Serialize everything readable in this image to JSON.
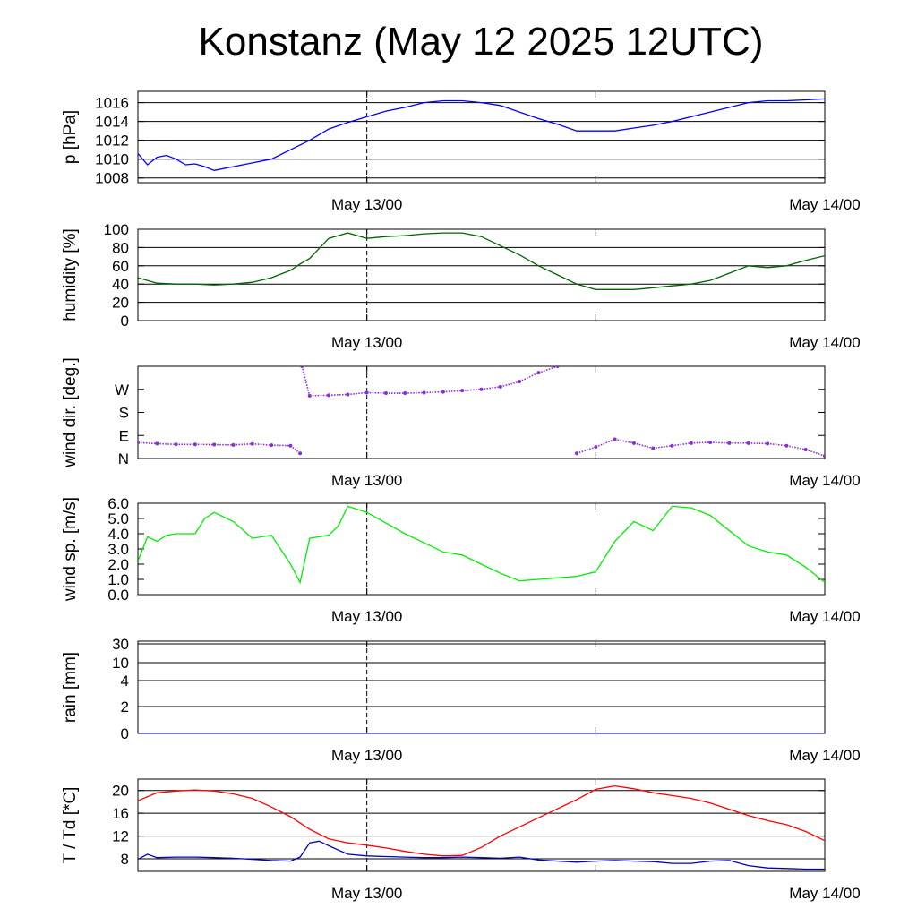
{
  "title": "Konstanz (May 12 2025 12UTC)",
  "chart_data": [
    {
      "type": "line",
      "ylabel": "p [hPa]",
      "ylim": [
        1007.5,
        1017.2
      ],
      "yticks": [
        1008,
        1010,
        1012,
        1014,
        1016
      ],
      "ytick_labels": [
        "1008",
        "1010",
        "1012",
        "1014",
        "1016"
      ],
      "grid": true,
      "x_tick_labels": [
        "May 13/00",
        "May 14/00"
      ],
      "series": [
        {
          "color": "#0000ff",
          "x": [
            0,
            0.5,
            1,
            1.5,
            2,
            2.5,
            3,
            3.5,
            4,
            5,
            6,
            7,
            8,
            9,
            10,
            11,
            12,
            13,
            14,
            15,
            16,
            17,
            18,
            19,
            20,
            21,
            22,
            23,
            24,
            25,
            26,
            27,
            28,
            29,
            30,
            31,
            32,
            33,
            34,
            35,
            36
          ],
          "y": [
            1010.6,
            1009.4,
            1010.2,
            1010.4,
            1010.0,
            1009.4,
            1009.5,
            1009.2,
            1008.8,
            1009.2,
            1009.6,
            1010.0,
            1011.0,
            1012.0,
            1013.2,
            1013.9,
            1014.5,
            1015.1,
            1015.5,
            1016.0,
            1016.2,
            1016.2,
            1016.0,
            1015.7,
            1015.0,
            1014.3,
            1013.7,
            1013.0,
            1013.0,
            1013.0,
            1013.3,
            1013.6,
            1014.0,
            1014.5,
            1015.0,
            1015.5,
            1016.0,
            1016.2,
            1016.2,
            1016.3,
            1016.4
          ]
        }
      ]
    },
    {
      "type": "line",
      "ylabel": "humidity [%]",
      "ylim": [
        0,
        100
      ],
      "yticks": [
        0,
        20,
        40,
        60,
        80,
        100
      ],
      "ytick_labels": [
        "0",
        "20",
        "40",
        "60",
        "80",
        "100"
      ],
      "grid": true,
      "x_tick_labels": [
        "May 13/00",
        "May 14/00"
      ],
      "series": [
        {
          "color": "#006400",
          "x": [
            0,
            1,
            2,
            3,
            4,
            5,
            6,
            7,
            8,
            8.5,
            9,
            10,
            11,
            12,
            13,
            14,
            15,
            16,
            17,
            18,
            19,
            20,
            21,
            22,
            23,
            24,
            25,
            26,
            27,
            28,
            29,
            30,
            31,
            32,
            33,
            34,
            35,
            36
          ],
          "y": [
            47,
            41,
            40,
            40,
            39,
            40,
            42,
            47,
            55,
            62,
            68,
            90,
            96,
            90,
            92,
            93,
            95,
            96,
            96,
            92,
            82,
            72,
            60,
            50,
            40,
            34,
            34,
            34,
            36,
            38,
            40,
            44,
            52,
            60,
            58,
            60,
            66,
            71
          ]
        }
      ]
    },
    {
      "type": "scatter",
      "ylabel": "wind dir. [deg.]",
      "ylim": [
        0,
        360
      ],
      "yticks": [
        0,
        90,
        180,
        270
      ],
      "ytick_labels": [
        "N",
        "E",
        "S",
        "W"
      ],
      "grid": false,
      "x_tick_labels": [
        "May 13/00",
        "May 14/00"
      ],
      "series": [
        {
          "color": "#8a2be2",
          "x": [
            0,
            1,
            2,
            3,
            4,
            5,
            6,
            7,
            8,
            8.5,
            8.6,
            9,
            10,
            11,
            12,
            13,
            14,
            15,
            16,
            17,
            18,
            19,
            20,
            21,
            22,
            23,
            24,
            25,
            26,
            27,
            28,
            29,
            30,
            31,
            32,
            33,
            34,
            35,
            36
          ],
          "y": [
            62,
            58,
            55,
            55,
            54,
            53,
            57,
            52,
            50,
            20,
            360,
            245,
            247,
            250,
            257,
            255,
            255,
            257,
            260,
            265,
            270,
            280,
            300,
            335,
            360,
            20,
            45,
            75,
            60,
            40,
            50,
            60,
            63,
            60,
            60,
            58,
            50,
            35,
            10
          ]
        }
      ]
    },
    {
      "type": "line",
      "ylabel": "wind sp. [m/s]",
      "ylim": [
        0,
        6
      ],
      "yticks": [
        0,
        1,
        2,
        3,
        4,
        5,
        6
      ],
      "ytick_labels": [
        "0.0",
        "1.0",
        "2.0",
        "3.0",
        "4.0",
        "5.0",
        "6.0"
      ],
      "grid": false,
      "x_tick_labels": [
        "May 13/00",
        "May 14/00"
      ],
      "series": [
        {
          "color": "#00ee00",
          "x": [
            0,
            0.5,
            1,
            1.5,
            2,
            3,
            3.5,
            4,
            5,
            6,
            7,
            8,
            8.5,
            9,
            10,
            10.5,
            11,
            12,
            13,
            14,
            15,
            16,
            17,
            18,
            19,
            20,
            21,
            22,
            23,
            24,
            25,
            26,
            27,
            28,
            29,
            30,
            31,
            32,
            33,
            34,
            35,
            36
          ],
          "y": [
            2.2,
            3.8,
            3.5,
            3.9,
            4.0,
            4.0,
            5.0,
            5.4,
            4.8,
            3.7,
            3.9,
            2.0,
            0.8,
            3.7,
            3.9,
            4.5,
            5.8,
            5.4,
            4.7,
            4.0,
            3.4,
            2.8,
            2.6,
            2.0,
            1.4,
            0.9,
            1.0,
            1.1,
            1.2,
            1.5,
            3.5,
            4.8,
            4.2,
            5.8,
            5.7,
            5.2,
            4.2,
            3.2,
            2.8,
            2.6,
            1.8,
            0.8
          ]
        }
      ]
    },
    {
      "type": "bar",
      "ylabel": "rain [mm]",
      "yscale": "nonlinear",
      "yticks": [
        0,
        2,
        4,
        10,
        30
      ],
      "ytick_labels": [
        "0",
        "2",
        "4",
        "10",
        "30"
      ],
      "grid": true,
      "x_tick_labels": [
        "May 13/00",
        "May 14/00"
      ],
      "series": [
        {
          "color": "#0000ff",
          "x": [
            0,
            36
          ],
          "y": [
            0,
            0
          ]
        }
      ]
    },
    {
      "type": "line",
      "ylabel": "T / Td [*C]",
      "ylim": [
        5.8,
        22
      ],
      "yticks": [
        8,
        12,
        16,
        20
      ],
      "ytick_labels": [
        "8",
        "12",
        "16",
        "20"
      ],
      "grid": true,
      "x_tick_labels": [
        "May 13/00",
        "May 14/00"
      ],
      "series": [
        {
          "color": "#ff0000",
          "x": [
            0,
            1,
            2,
            3,
            4,
            5,
            6,
            7,
            8,
            9,
            10,
            11,
            12,
            13,
            14,
            15,
            16,
            17,
            18,
            19,
            20,
            21,
            22,
            23,
            24,
            25,
            26,
            27,
            28,
            29,
            30,
            31,
            32,
            33,
            34,
            35,
            36
          ],
          "y": [
            18.2,
            19.6,
            19.9,
            20.1,
            19.9,
            19.4,
            18.6,
            17.1,
            15.4,
            13.2,
            11.5,
            10.8,
            10.4,
            9.9,
            9.3,
            8.8,
            8.5,
            8.6,
            10.0,
            12.0,
            13.6,
            15.2,
            16.8,
            18.4,
            20.2,
            20.8,
            20.3,
            19.6,
            19.1,
            18.6,
            17.8,
            16.7,
            15.6,
            14.7,
            14.0,
            12.8,
            11.2
          ]
        },
        {
          "color": "#0000bb",
          "x": [
            0,
            0.5,
            1,
            2,
            3,
            4,
            5,
            6,
            7,
            8,
            8.5,
            9,
            9.5,
            10,
            11,
            12,
            13,
            14,
            15,
            16,
            17,
            18,
            19,
            20,
            21,
            22,
            23,
            24,
            25,
            26,
            27,
            28,
            29,
            30,
            31,
            32,
            33,
            34,
            35,
            36
          ],
          "y": [
            7.9,
            8.8,
            8.2,
            8.3,
            8.3,
            8.2,
            8.1,
            7.9,
            7.7,
            7.6,
            8.3,
            10.8,
            11.1,
            10.3,
            8.8,
            8.5,
            8.4,
            8.3,
            8.2,
            8.2,
            8.3,
            8.2,
            8.1,
            8.3,
            7.8,
            7.6,
            7.4,
            7.6,
            7.7,
            7.6,
            7.5,
            7.2,
            7.2,
            7.6,
            7.7,
            6.8,
            6.4,
            6.3,
            6.2,
            6.2
          ]
        }
      ]
    }
  ]
}
